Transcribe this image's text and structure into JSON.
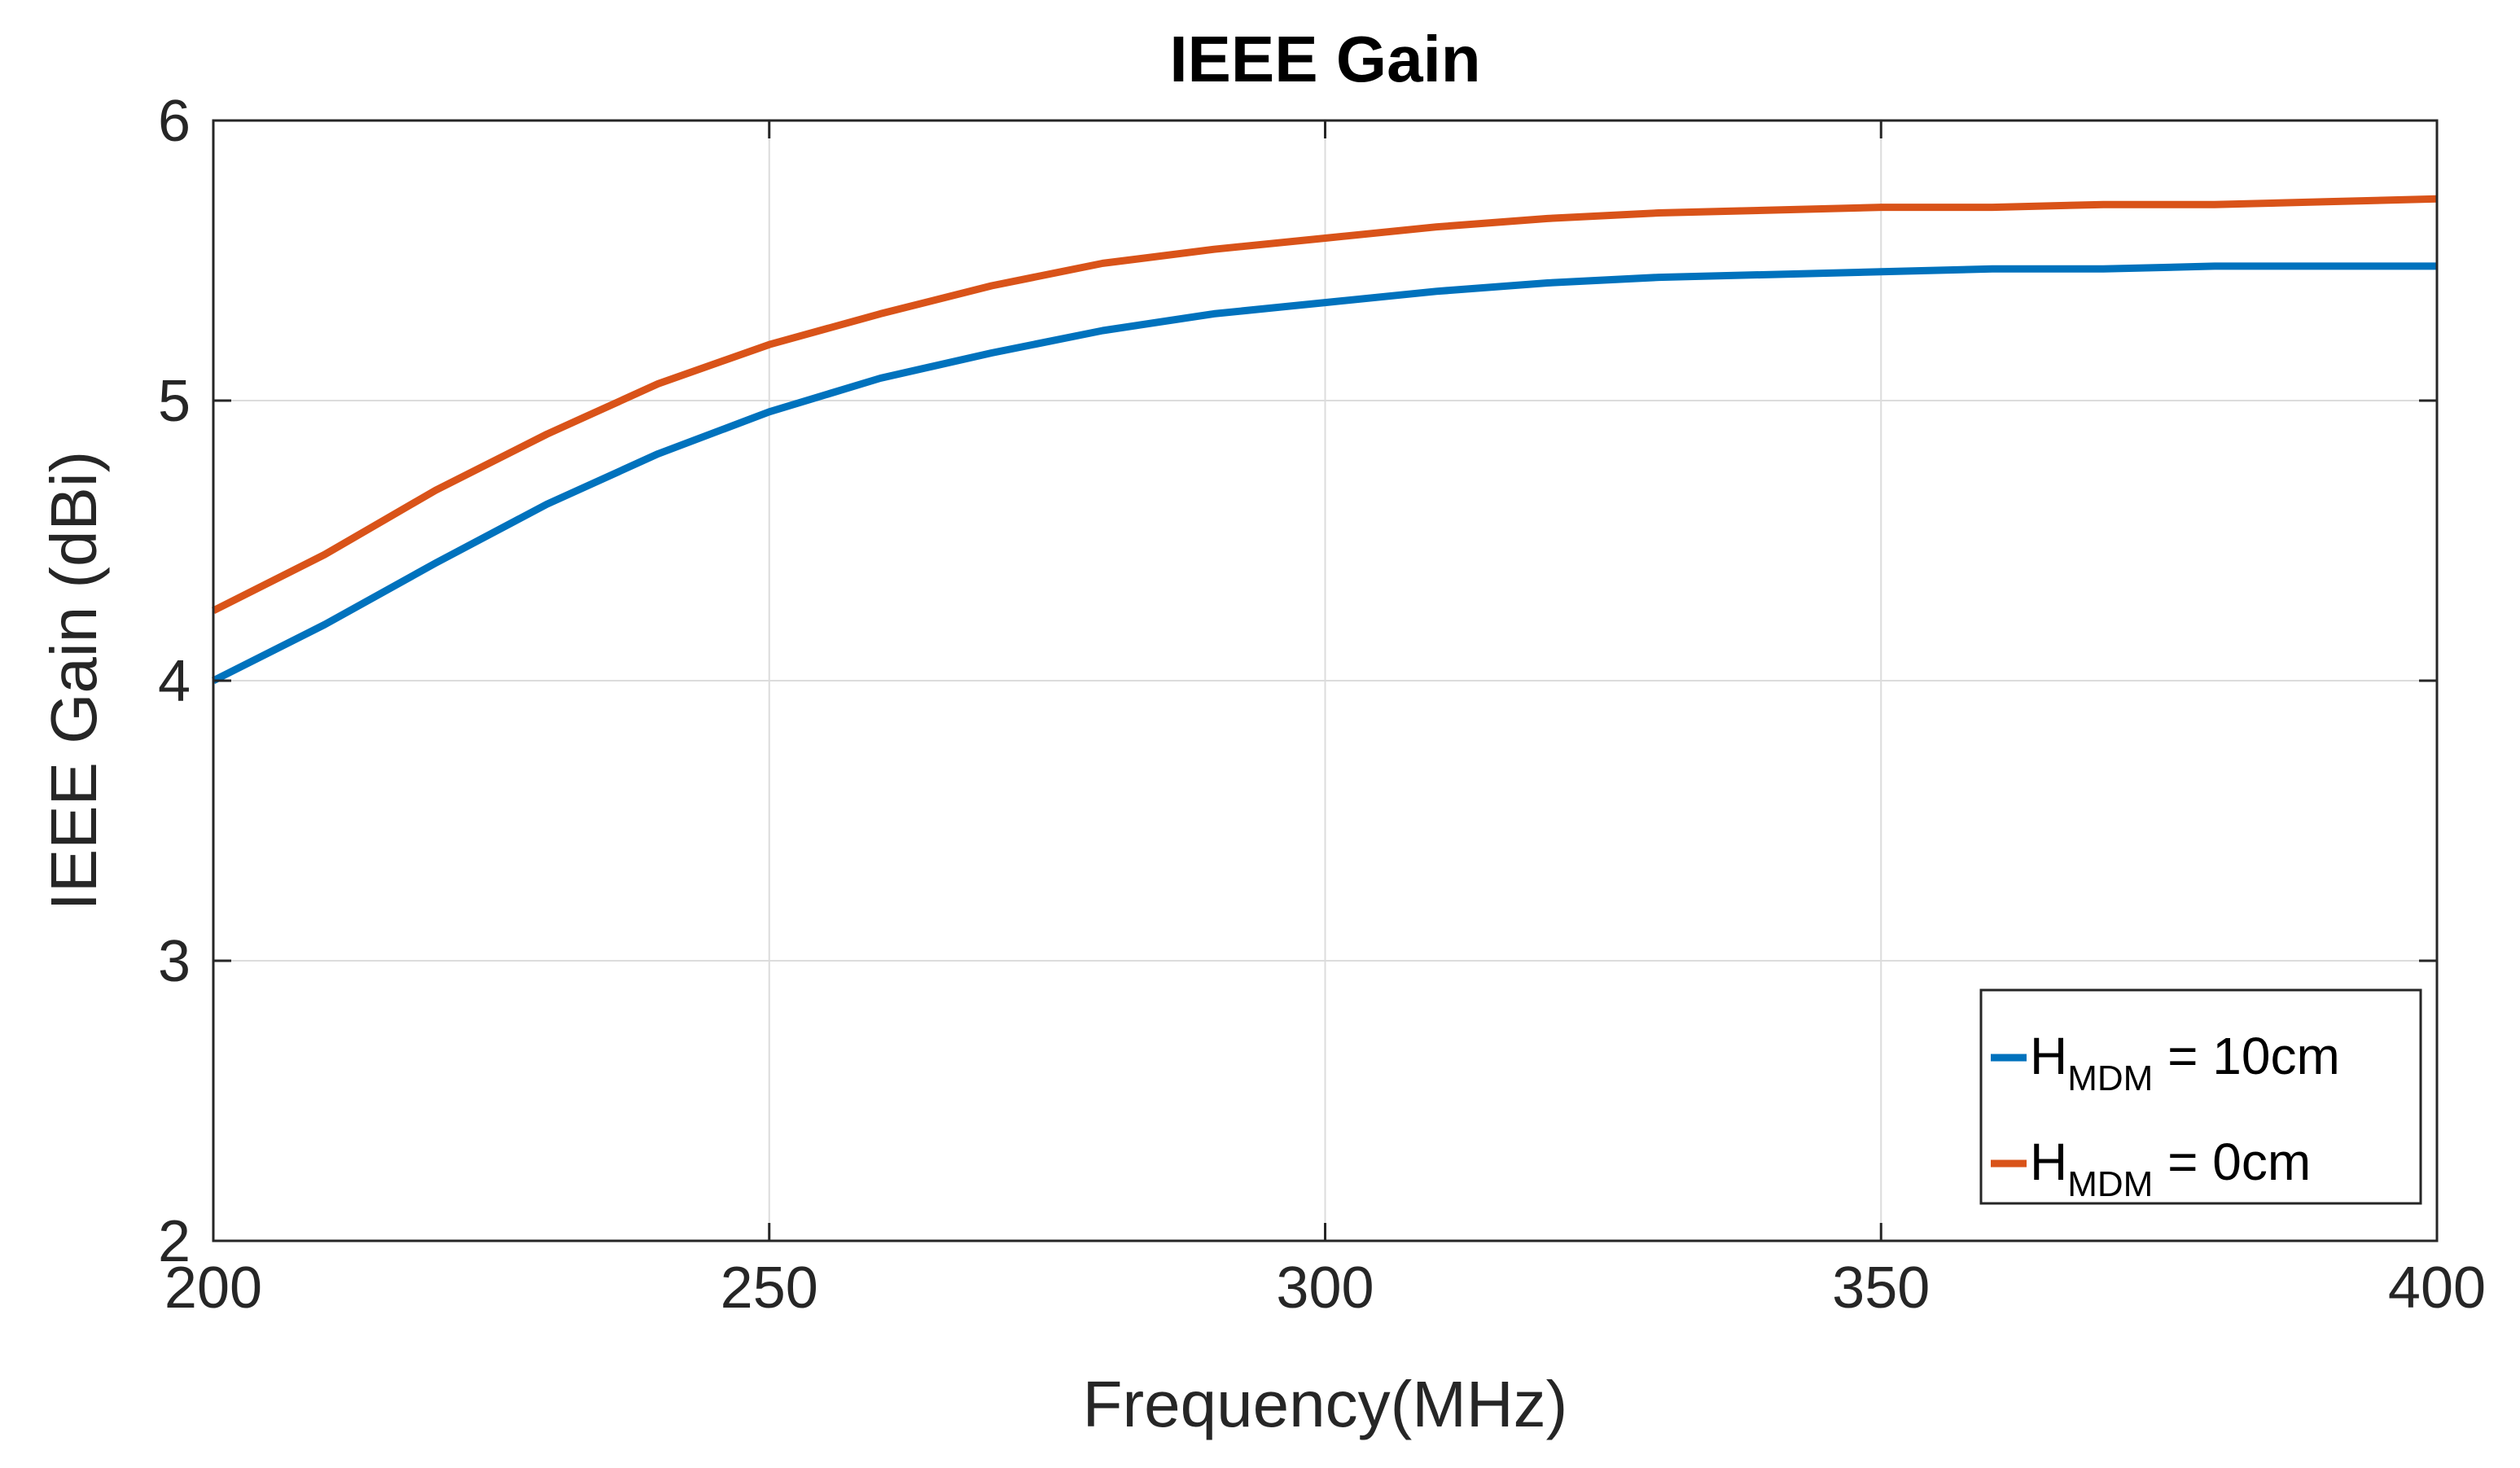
{
  "chart_data": {
    "type": "line",
    "title": "IEEE Gain",
    "xlabel": "Frequency(MHz)",
    "ylabel": "IEEE Gain (dBi)",
    "xlim": [
      200,
      400
    ],
    "ylim": [
      2,
      6
    ],
    "xticks": [
      200,
      250,
      300,
      350,
      400
    ],
    "yticks": [
      2,
      3,
      4,
      5,
      6
    ],
    "xtick_labels": [
      "200",
      "250",
      "300",
      "350",
      "400"
    ],
    "ytick_labels": [
      "2",
      "3",
      "4",
      "5",
      "6"
    ],
    "grid": true,
    "legend_position": "bottom-right",
    "series": [
      {
        "name_main": "H",
        "name_sub": "MDM",
        "name_suffix": " = 10cm",
        "color": "#0072BD",
        "x": [
          200,
          210,
          220,
          230,
          240,
          250,
          260,
          270,
          280,
          290,
          300,
          310,
          320,
          330,
          340,
          350,
          360,
          370,
          380,
          390,
          400
        ],
        "y": [
          4.0,
          4.2,
          4.42,
          4.63,
          4.81,
          4.96,
          5.08,
          5.17,
          5.25,
          5.31,
          5.35,
          5.39,
          5.42,
          5.44,
          5.45,
          5.46,
          5.47,
          5.47,
          5.48,
          5.48,
          5.48
        ]
      },
      {
        "name_main": "H",
        "name_sub": "MDM",
        "name_suffix": " = 0cm",
        "color": "#D95319",
        "x": [
          200,
          210,
          220,
          230,
          240,
          250,
          260,
          270,
          280,
          290,
          300,
          310,
          320,
          330,
          340,
          350,
          360,
          370,
          380,
          390,
          400
        ],
        "y": [
          4.25,
          4.45,
          4.68,
          4.88,
          5.06,
          5.2,
          5.31,
          5.41,
          5.49,
          5.54,
          5.58,
          5.62,
          5.65,
          5.67,
          5.68,
          5.69,
          5.69,
          5.7,
          5.7,
          5.71,
          5.72
        ]
      }
    ]
  }
}
